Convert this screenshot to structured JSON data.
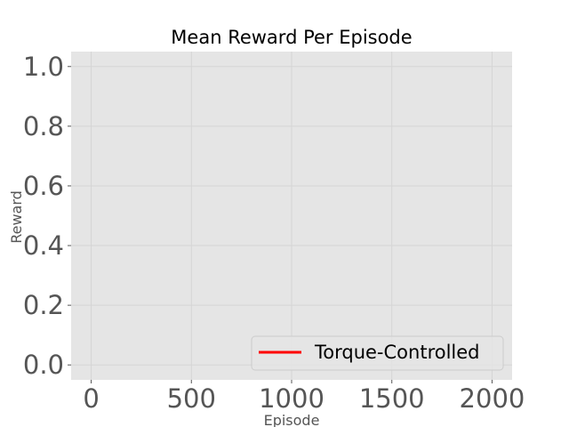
{
  "chart_data": {
    "type": "line",
    "title": "Mean Reward Per Episode",
    "xlabel": "Episode",
    "ylabel": "Reward",
    "xlim": [
      -100,
      2100
    ],
    "ylim": [
      -0.05,
      1.05
    ],
    "xticks": [
      0,
      500,
      1000,
      1500,
      2000
    ],
    "yticks": [
      0.0,
      0.2,
      0.4,
      0.6,
      0.8,
      1.0
    ],
    "xtick_labels": [
      "0",
      "500",
      "1000",
      "1500",
      "2000"
    ],
    "ytick_labels": [
      "0.0",
      "0.2",
      "0.4",
      "0.6",
      "0.8",
      "1.0"
    ],
    "grid": true,
    "legend_position": "lower-right",
    "series": [
      {
        "name": "Torque-Controlled",
        "color": "#ff0000",
        "x": [],
        "y": []
      }
    ]
  },
  "style": {
    "plot_background": "#e5e5e5",
    "grid_color": "#d5d5d5",
    "tick_color": "#555555"
  }
}
